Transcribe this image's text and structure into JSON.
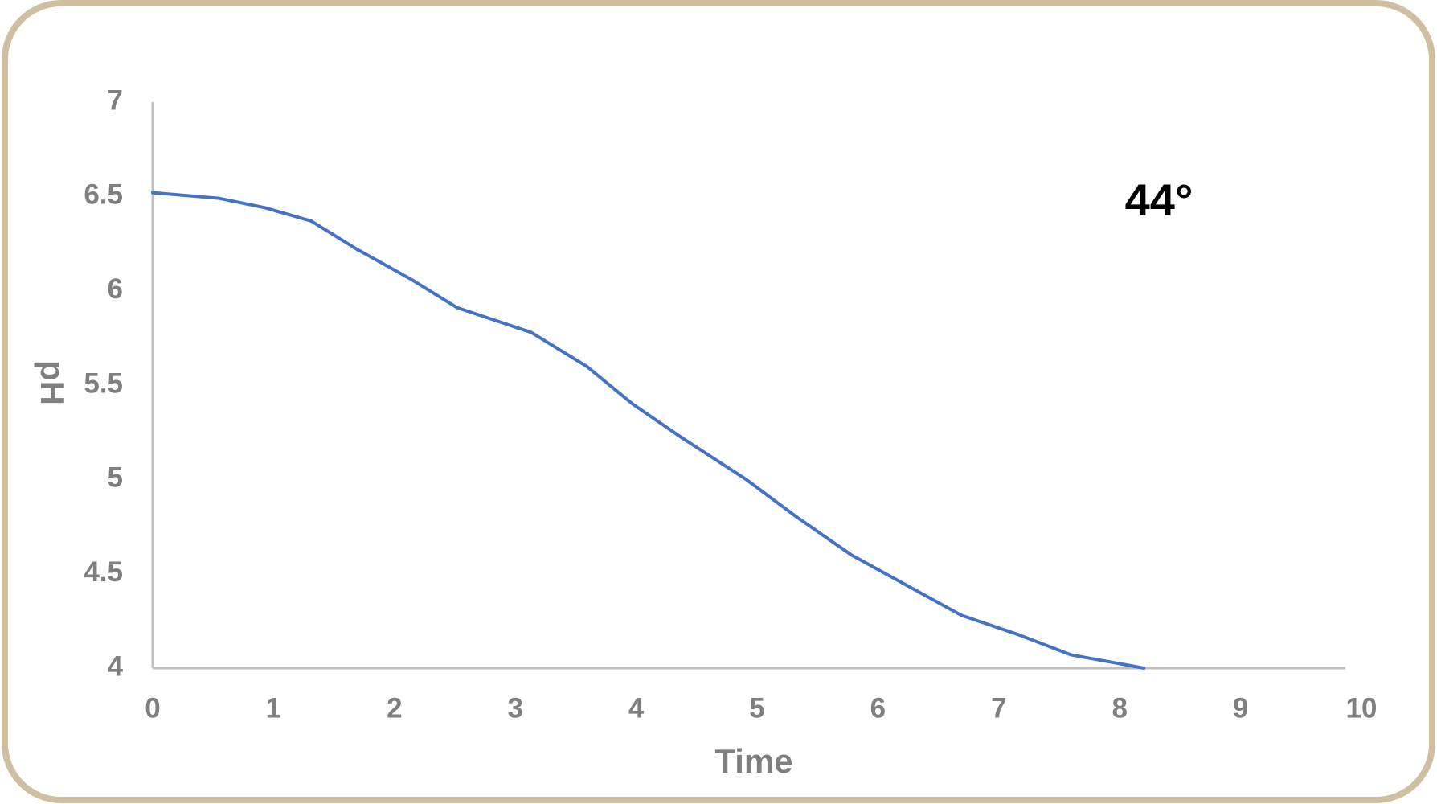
{
  "chart_data": {
    "type": "line",
    "x_label": "Time",
    "y_label": "pH",
    "annotation": "44°",
    "x": [
      0,
      0.55,
      0.93,
      1.31,
      1.69,
      2.14,
      2.52,
      3.13,
      3.59,
      3.97,
      4.38,
      4.91,
      5.33,
      5.78,
      6.32,
      6.69,
      7.15,
      7.6,
      8.2
    ],
    "values": [
      6.52,
      6.49,
      6.44,
      6.37,
      6.22,
      6.06,
      5.91,
      5.78,
      5.6,
      5.4,
      5.22,
      5.0,
      4.8,
      4.6,
      4.41,
      4.28,
      4.18,
      4.07,
      4.0
    ],
    "color": "#4472c4",
    "xlim": [
      0,
      10
    ],
    "xticks": [
      0,
      1,
      2,
      3,
      4,
      5,
      6,
      7,
      8,
      9,
      10
    ],
    "ylim": [
      4,
      7
    ],
    "yticks": [
      4,
      4.5,
      5,
      5.5,
      6,
      6.5,
      7
    ]
  }
}
